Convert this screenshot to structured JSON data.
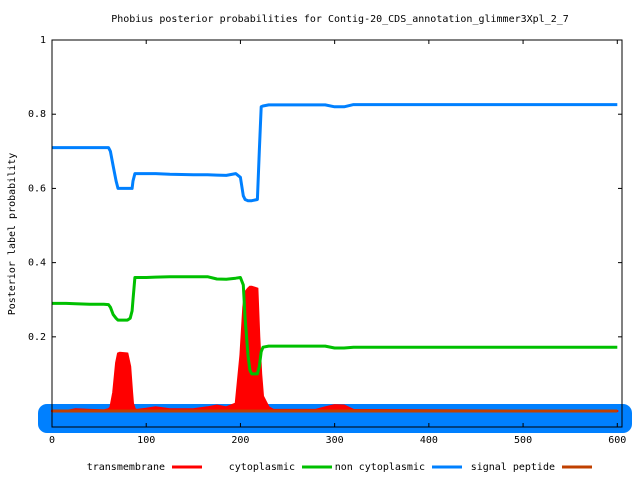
{
  "chart_data": {
    "type": "line",
    "title": "Phobius posterior probabilities for Contig-20_CDS_annotation_glimmer3Xpl_2_7",
    "y_label": "Posterior label probability",
    "x": [
      0,
      15,
      25,
      40,
      55,
      60,
      62,
      65,
      68,
      70,
      72,
      80,
      83,
      85,
      86,
      88,
      90,
      100,
      110,
      125,
      150,
      165,
      175,
      185,
      195,
      200,
      203,
      205,
      208,
      210,
      212,
      218,
      220,
      222,
      224,
      230,
      235,
      280,
      290,
      300,
      310,
      320,
      600
    ],
    "series": [
      {
        "name": "transmembrane",
        "color": "#ff0000",
        "fill": true,
        "values": [
          0,
          0,
          0.005,
          0.003,
          0.002,
          0.005,
          0.01,
          0.05,
          0.13,
          0.155,
          0.157,
          0.155,
          0.12,
          0.05,
          0.02,
          0.005,
          0.003,
          0.006,
          0.01,
          0.005,
          0.005,
          0.01,
          0.015,
          0.01,
          0.02,
          0.15,
          0.28,
          0.32,
          0.33,
          0.335,
          0.335,
          0.33,
          0.2,
          0.1,
          0.04,
          0.01,
          0.003,
          0.003,
          0.01,
          0.016,
          0.015,
          0.003,
          0
        ]
      },
      {
        "name": "cytoplasmic",
        "color": "#00c000",
        "fill": false,
        "values": [
          0.29,
          0.29,
          0.289,
          0.288,
          0.288,
          0.287,
          0.28,
          0.26,
          0.25,
          0.245,
          0.245,
          0.245,
          0.25,
          0.27,
          0.3,
          0.36,
          0.36,
          0.36,
          0.361,
          0.362,
          0.362,
          0.362,
          0.356,
          0.355,
          0.358,
          0.36,
          0.34,
          0.25,
          0.15,
          0.11,
          0.1,
          0.1,
          0.12,
          0.16,
          0.172,
          0.175,
          0.175,
          0.175,
          0.175,
          0.17,
          0.17,
          0.172,
          0.172
        ]
      },
      {
        "name": "non cytoplasmic",
        "color": "#0080ff",
        "fill": false,
        "values": [
          0.71,
          0.71,
          0.71,
          0.71,
          0.71,
          0.71,
          0.7,
          0.66,
          0.62,
          0.6,
          0.6,
          0.6,
          0.6,
          0.6,
          0.62,
          0.64,
          0.64,
          0.64,
          0.64,
          0.638,
          0.637,
          0.637,
          0.636,
          0.635,
          0.64,
          0.63,
          0.58,
          0.57,
          0.567,
          0.567,
          0.567,
          0.57,
          0.7,
          0.82,
          0.822,
          0.825,
          0.825,
          0.825,
          0.825,
          0.82,
          0.82,
          0.826,
          0.826
        ]
      },
      {
        "name": "signal peptide",
        "color": "#c04000",
        "fill": false,
        "values": [
          0,
          0,
          0,
          0,
          0,
          0,
          0,
          0,
          0,
          0,
          0,
          0,
          0,
          0,
          0,
          0,
          0,
          0,
          0,
          0,
          0,
          0,
          0,
          0,
          0,
          0,
          0,
          0,
          0,
          0,
          0,
          0,
          0,
          0,
          0,
          0,
          0,
          0,
          0,
          0,
          0,
          0,
          0
        ]
      }
    ],
    "xlim": [
      0,
      605
    ],
    "ylim": [
      -0.043,
      1
    ],
    "xticks": [
      0,
      100,
      200,
      300,
      400,
      500,
      600
    ],
    "yticks": [
      0.2,
      0.4,
      0.6,
      0.8,
      1
    ]
  }
}
